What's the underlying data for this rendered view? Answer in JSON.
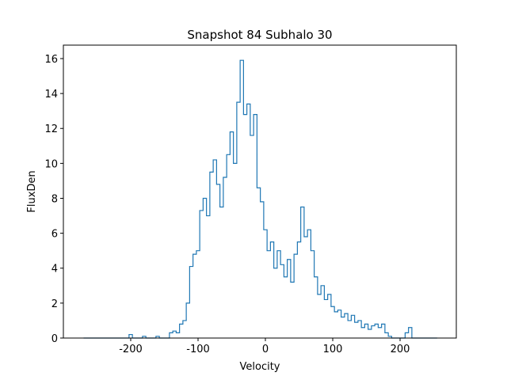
{
  "chart_data": {
    "type": "line",
    "title": "Snapshot 84 Subhalo 30",
    "x_label": "Velocity",
    "y_label": "FluxDen",
    "drawstyle": "steps-mid",
    "x": [
      -270,
      -265,
      -260,
      -255,
      -250,
      -245,
      -240,
      -235,
      -230,
      -225,
      -220,
      -215,
      -210,
      -205,
      -200,
      -195,
      -190,
      -185,
      -180,
      -175,
      -170,
      -165,
      -160,
      -155,
      -150,
      -145,
      -140,
      -135,
      -130,
      -125,
      -120,
      -115,
      -110,
      -105,
      -100,
      -95,
      -90,
      -85,
      -80,
      -75,
      -70,
      -65,
      -60,
      -55,
      -50,
      -45,
      -40,
      -35,
      -30,
      -25,
      -20,
      -15,
      -10,
      -5,
      0,
      5,
      10,
      15,
      20,
      25,
      30,
      35,
      40,
      45,
      50,
      55,
      60,
      65,
      70,
      75,
      80,
      85,
      90,
      95,
      100,
      105,
      110,
      115,
      120,
      125,
      130,
      135,
      140,
      145,
      150,
      155,
      160,
      165,
      170,
      175,
      180,
      185,
      190,
      195,
      200,
      205,
      210,
      215,
      220,
      225,
      230,
      235,
      240,
      245,
      250,
      255
    ],
    "series": [
      {
        "name": "FluxDen",
        "color": "#1f77b4",
        "values": [
          0,
          0,
          0,
          0,
          0,
          0,
          0,
          0,
          0,
          0,
          0,
          0,
          0,
          0,
          0.2,
          0,
          0,
          0,
          0.1,
          0,
          0,
          0,
          0.1,
          0,
          0,
          0,
          0.3,
          0.4,
          0.3,
          0.8,
          1.0,
          2.0,
          4.1,
          4.8,
          5.0,
          7.3,
          8.0,
          7.0,
          9.5,
          10.2,
          8.8,
          7.5,
          9.2,
          10.5,
          11.8,
          10.0,
          13.5,
          15.9,
          12.8,
          13.4,
          11.6,
          12.8,
          8.6,
          7.8,
          6.2,
          5.0,
          5.5,
          4.0,
          5.0,
          4.2,
          3.5,
          4.5,
          3.2,
          4.8,
          5.5,
          7.5,
          5.8,
          6.2,
          5.0,
          3.5,
          2.5,
          3.0,
          2.2,
          2.5,
          1.8,
          1.5,
          1.6,
          1.2,
          1.4,
          1.0,
          1.3,
          0.9,
          1.0,
          0.6,
          0.8,
          0.5,
          0.7,
          0.8,
          0.6,
          0.8,
          0.3,
          0.1,
          0,
          0,
          0,
          0,
          0.3,
          0.6,
          0,
          0,
          0,
          0,
          0,
          0,
          0,
          0
        ]
      }
    ],
    "xlim": [
      -300,
      283.5
    ],
    "ylim": [
      0,
      16.77
    ],
    "xticks": [
      -200,
      -100,
      0,
      100,
      200
    ],
    "yticks": [
      0,
      2,
      4,
      6,
      8,
      10,
      12,
      14,
      16
    ]
  }
}
